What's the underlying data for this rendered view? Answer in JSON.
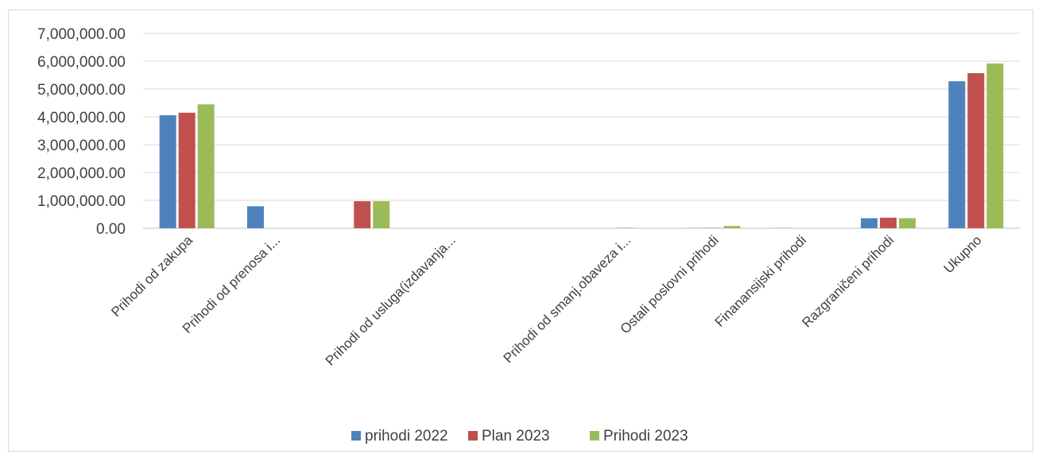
{
  "chart_data": {
    "type": "bar",
    "categories": [
      "Prihodi od zakupa",
      "Prihodi  od prenosa i...",
      "",
      "Prihodi od usluga(izdavanja...",
      "",
      "Prihodi od smanj.obaveza i...",
      "Ostali poslovni prihodi",
      "Finanansijski prihodi",
      "Razgraničeni prihodi",
      "Ukupno"
    ],
    "series": [
      {
        "name": "prihodi 2022",
        "color": "#4f81bd",
        "values": [
          4060000,
          790000,
          0,
          0,
          0,
          0,
          5000,
          5000,
          360000,
          5280000
        ]
      },
      {
        "name": "Plan 2023",
        "color": "#c0504d",
        "values": [
          4150000,
          0,
          970000,
          0,
          0,
          10000,
          10000,
          0,
          380000,
          5570000
        ]
      },
      {
        "name": "Prihodi 2023",
        "color": "#9bbb59",
        "values": [
          4450000,
          0,
          970000,
          0,
          0,
          0,
          80000,
          0,
          360000,
          5920000
        ]
      }
    ],
    "yticks": [
      "0.00",
      "1,000,000.00",
      "2,000,000.00",
      "3,000,000.00",
      "4,000,000.00",
      "5,000,000.00",
      "6,000,000.00",
      "7,000,000.00"
    ],
    "ylim": [
      0,
      7000000
    ],
    "grid": true,
    "legend_position": "bottom"
  }
}
